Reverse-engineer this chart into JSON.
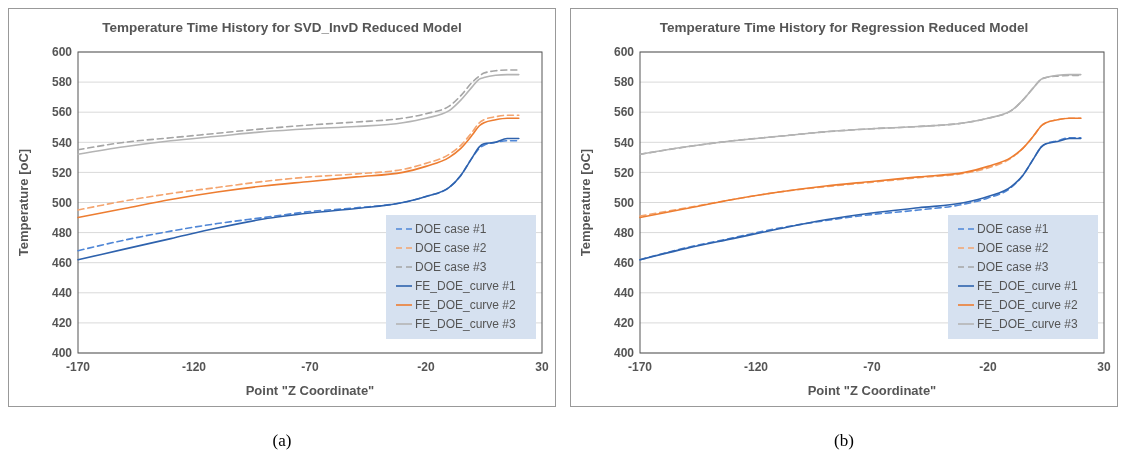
{
  "chart_data": [
    {
      "type": "line",
      "title": "Temperature Time History for SVD_InvD Reduced Model",
      "xlabel": "Point \"Z Coordinate\"",
      "ylabel": "Temperature [oC]",
      "annotations": [
        "(a)"
      ],
      "xlim": [
        -170,
        30
      ],
      "xticks": [
        -170,
        -120,
        -70,
        -20,
        30
      ],
      "ylim": [
        400,
        600
      ],
      "yticks": [
        400,
        420,
        440,
        460,
        480,
        500,
        520,
        540,
        560,
        580,
        600
      ],
      "grid": "y",
      "legend": "bottom right",
      "x": [
        -170,
        -150,
        -130,
        -110,
        -90,
        -70,
        -50,
        -30,
        -20,
        -10,
        -5,
        0,
        3,
        5,
        10,
        15,
        20
      ],
      "series": [
        {
          "name": "DOE case #1",
          "color": "#4f86d6",
          "line_style": "dashed",
          "values": [
            468,
            475,
            481,
            486,
            490,
            494,
            496.5,
            500,
            504,
            510,
            518,
            530,
            536,
            538,
            540,
            541,
            541
          ]
        },
        {
          "name": "DOE case #2",
          "color": "#f4a46e",
          "line_style": "dashed",
          "values": [
            495,
            501,
            506,
            510,
            514,
            517,
            519,
            522,
            526,
            532,
            538,
            547,
            553,
            555,
            557,
            558,
            558
          ]
        },
        {
          "name": "DOE case #3",
          "color": "#a5a5a5",
          "line_style": "dashed",
          "values": [
            535,
            540,
            543,
            546,
            549,
            551.5,
            553.5,
            556,
            559,
            564,
            571,
            580,
            584,
            586,
            587.5,
            588,
            588
          ]
        },
        {
          "name": "FE_DOE_curve #1",
          "color": "#2e62ad",
          "line_style": "solid",
          "values": [
            462,
            469,
            476,
            483,
            489,
            493,
            496,
            500,
            504,
            510,
            518,
            530,
            537,
            539,
            540,
            542.5,
            542.5
          ]
        },
        {
          "name": "FE_DOE_curve #2",
          "color": "#ed7d31",
          "line_style": "solid",
          "values": [
            490,
            496,
            502,
            507,
            511,
            514,
            517,
            520,
            524,
            530,
            536,
            545,
            551,
            553,
            555,
            556,
            556
          ]
        },
        {
          "name": "FE_DOE_curve #3",
          "color": "#b4b4b4",
          "line_style": "solid",
          "values": [
            532,
            537,
            541,
            544,
            547,
            549,
            550.5,
            553,
            556,
            561,
            568,
            577,
            582,
            583,
            584.5,
            585,
            585
          ]
        }
      ]
    },
    {
      "type": "line",
      "title": "Temperature Time History for Regression Reduced Model",
      "xlabel": "Point \"Z Coordinate\"",
      "ylabel": "Temperature [oC]",
      "annotations": [
        "(b)"
      ],
      "xlim": [
        -170,
        30
      ],
      "xticks": [
        -170,
        -120,
        -70,
        -20,
        30
      ],
      "ylim": [
        400,
        600
      ],
      "yticks": [
        400,
        420,
        440,
        460,
        480,
        500,
        520,
        540,
        560,
        580,
        600
      ],
      "grid": "y",
      "legend": "bottom right",
      "x": [
        -170,
        -150,
        -130,
        -110,
        -90,
        -70,
        -50,
        -30,
        -20,
        -10,
        -5,
        0,
        3,
        5,
        10,
        15,
        20
      ],
      "series": [
        {
          "name": "DOE case #1",
          "color": "#4f86d6",
          "line_style": "dashed",
          "values": [
            462,
            470,
            476.5,
            483,
            488,
            492,
            495,
            499,
            503,
            510,
            518,
            530,
            537,
            539,
            541,
            543,
            543
          ]
        },
        {
          "name": "DOE case #2",
          "color": "#f4a46e",
          "line_style": "dashed",
          "values": [
            491,
            496.5,
            502,
            507,
            510.5,
            513.5,
            516.5,
            519.5,
            523,
            529.5,
            536,
            545,
            551,
            553,
            555,
            556,
            556
          ]
        },
        {
          "name": "DOE case #3",
          "color": "#a5a5a5",
          "line_style": "dashed",
          "values": [
            532,
            537,
            541,
            544,
            547,
            549,
            550.5,
            553,
            556,
            561,
            568,
            577,
            582,
            583,
            584,
            584.5,
            584.5
          ]
        },
        {
          "name": "FE_DOE_curve #1",
          "color": "#2e62ad",
          "line_style": "solid",
          "values": [
            462,
            469.5,
            476,
            482.5,
            488.5,
            493,
            496.5,
            500,
            504,
            510.5,
            518,
            530,
            537,
            539,
            540.5,
            542.5,
            542.5
          ]
        },
        {
          "name": "FE_DOE_curve #2",
          "color": "#ed7d31",
          "line_style": "solid",
          "values": [
            490,
            496,
            502,
            507,
            511,
            514,
            517,
            520,
            524,
            530,
            536,
            545,
            551,
            553,
            555,
            556,
            556
          ]
        },
        {
          "name": "FE_DOE_curve #3",
          "color": "#b4b4b4",
          "line_style": "solid",
          "values": [
            532,
            537,
            541,
            544,
            547,
            549,
            550.5,
            553,
            556,
            561,
            568,
            577,
            582,
            583,
            584.5,
            585,
            585
          ]
        }
      ]
    }
  ]
}
